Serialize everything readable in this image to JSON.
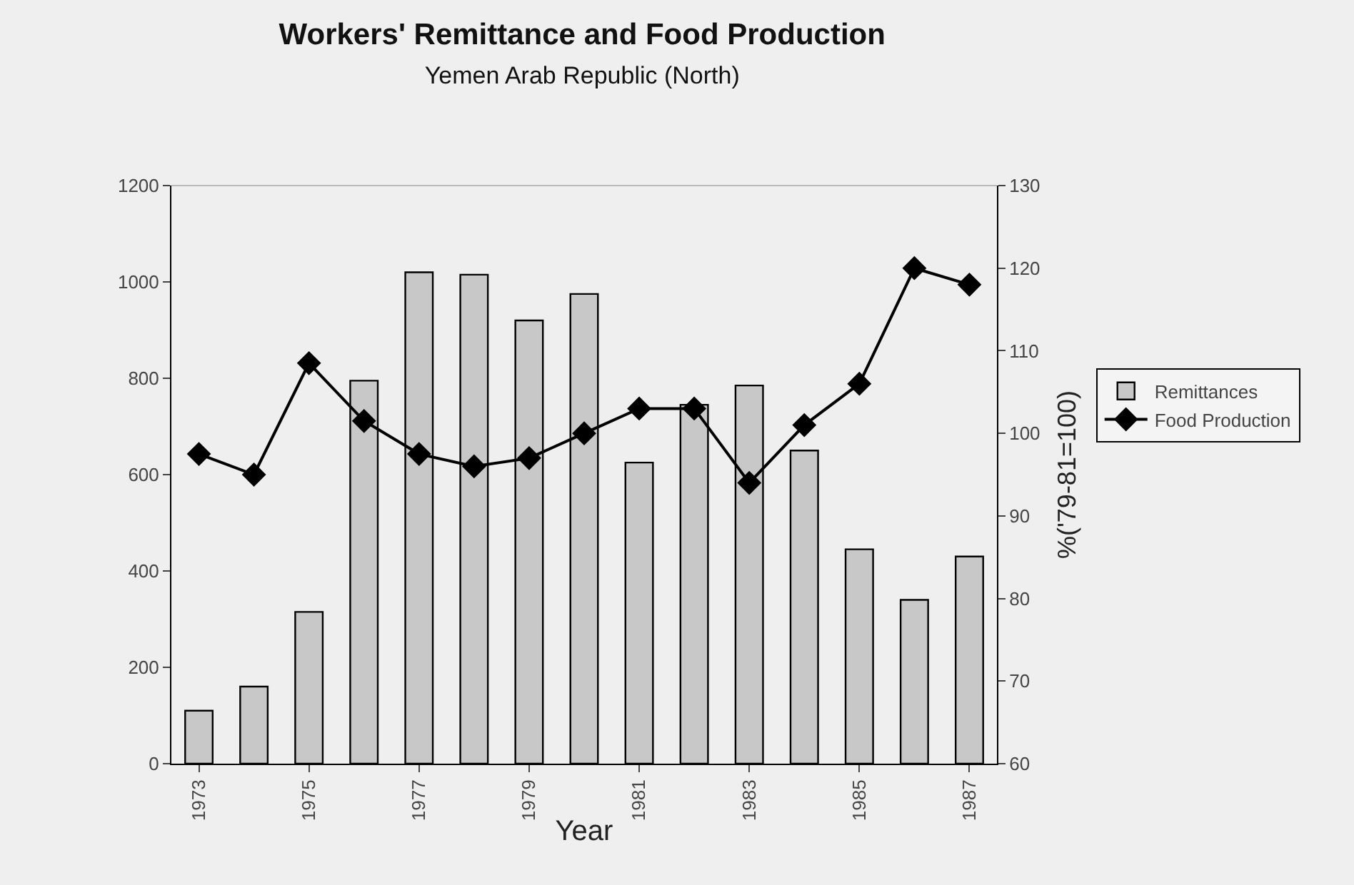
{
  "chart_data": {
    "type": "bar",
    "title": "Workers' Remittance and Food Production",
    "subtitle": "Yemen Arab Republic (North)",
    "xlabel": "Year",
    "y2label": "%('79-81=100)",
    "categories": [
      "1973",
      null,
      "1975",
      null,
      "1977",
      null,
      "1979",
      null,
      "1981",
      null,
      "1983",
      null,
      "1985",
      null,
      "1987"
    ],
    "series": [
      {
        "name": "Remittances",
        "color": "#c8c8c8",
        "values": [
          110,
          160,
          315,
          795,
          1020,
          1015,
          920,
          975,
          625,
          745,
          785,
          650,
          445,
          340,
          430
        ]
      },
      {
        "name": "Food Production",
        "type": "line",
        "axis": "y2",
        "color": "#000000",
        "values": [
          97.5,
          95,
          108.5,
          101.5,
          97.5,
          96,
          97,
          100,
          103,
          103,
          94,
          101,
          106,
          120,
          118
        ]
      }
    ],
    "ylim": [
      0,
      1200
    ],
    "yticks": [
      0,
      200,
      400,
      600,
      800,
      1000,
      1200
    ],
    "y2lim": [
      60,
      130
    ],
    "y2ticks": [
      60,
      70,
      80,
      90,
      100,
      110,
      120,
      130
    ],
    "legend": "right",
    "marker": "diamond",
    "grid": false
  }
}
